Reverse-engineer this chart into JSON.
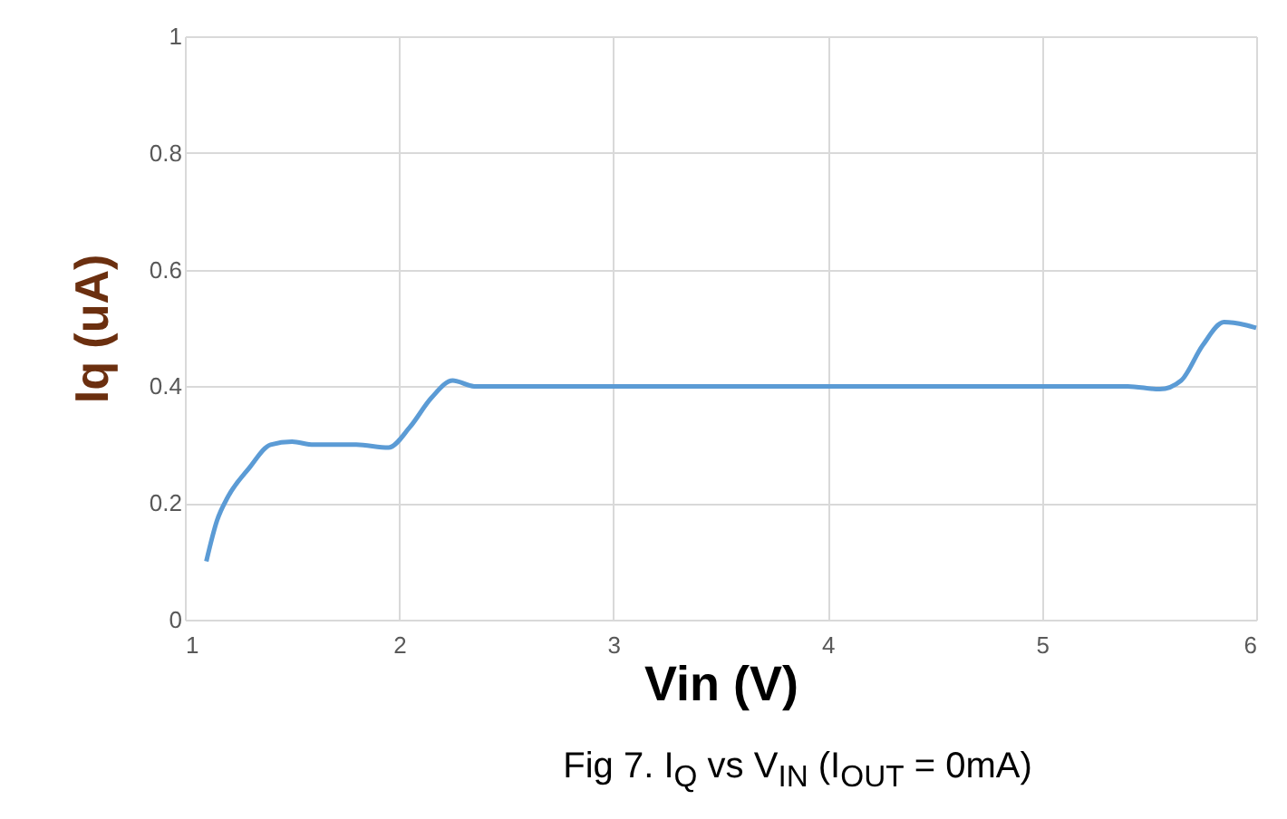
{
  "chart_data": {
    "type": "line",
    "xlabel": "Vin (V)",
    "ylabel": "Iq (uA)",
    "annotations": [
      "Fig 7. I$_{Q}$ vs V$_{IN}$ (I$_{OUT}$ = 0mA)"
    ],
    "x": [
      1.1,
      1.15,
      1.2,
      1.3,
      1.4,
      1.5,
      1.6,
      1.8,
      1.95,
      2.05,
      2.15,
      2.25,
      2.35,
      3,
      4,
      5,
      5.4,
      5.55,
      5.65,
      5.75,
      5.85,
      5.95,
      6
    ],
    "series": [
      {
        "color": "#5b9bd5",
        "values": [
          0.1,
          0.17,
          0.21,
          0.26,
          0.3,
          0.305,
          0.3,
          0.3,
          0.295,
          0.33,
          0.38,
          0.41,
          0.4,
          0.4,
          0.4,
          0.4,
          0.4,
          0.395,
          0.41,
          0.47,
          0.51,
          0.505,
          0.5
        ]
      }
    ],
    "xlim": [
      1,
      6
    ],
    "xticks": [
      1,
      2,
      3,
      4,
      5,
      6
    ],
    "ylim": [
      0,
      1
    ],
    "yticks": [
      0,
      0.2,
      0.4,
      0.6,
      0.8,
      1
    ],
    "grid": true,
    "marker": "none",
    "line_style": "solid"
  }
}
